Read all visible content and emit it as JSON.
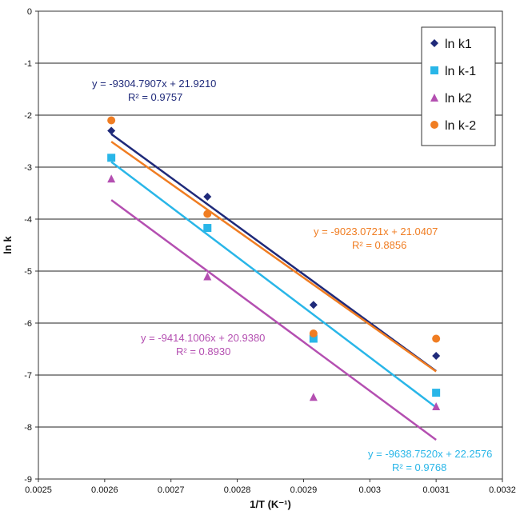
{
  "chart_data": {
    "type": "scatter",
    "xlabel": "1/T (K⁻¹)",
    "ylabel": "ln k",
    "xlim": [
      0.0025,
      0.0032
    ],
    "ylim": [
      -9,
      0
    ],
    "x_ticks": [
      "0.0025",
      "0.0026",
      "0.0027",
      "0.0028",
      "0.0029",
      "0.003",
      "0.0031",
      "0.0032"
    ],
    "y_ticks": [
      "0",
      "-1",
      "-2",
      "-3",
      "-4",
      "-5",
      "-6",
      "-7",
      "-8",
      "-9"
    ],
    "grid": "horizontal",
    "legend_position": "top-right",
    "series": [
      {
        "name": "ln k1",
        "marker": "diamond",
        "color": "#1f2a7a",
        "x": [
          0.00261,
          0.002755,
          0.002915,
          0.0031
        ],
        "y": [
          -2.3,
          -3.57,
          -5.65,
          -6.63
        ],
        "fit": {
          "slope": -9304.7907,
          "intercept": 21.921
        },
        "equation": "y = -9304.7907x + 21.9210",
        "r2": "R² = 0.9757"
      },
      {
        "name": "ln k-1",
        "marker": "square",
        "color": "#29b6e8",
        "x": [
          0.00261,
          0.002755,
          0.002915,
          0.0031
        ],
        "y": [
          -2.82,
          -4.17,
          -6.3,
          -7.34
        ],
        "fit": {
          "slope": -9638.752,
          "intercept": 22.2576
        },
        "equation": "y = -9638.7520x + 22.2576",
        "r2": "R² = 0.9768"
      },
      {
        "name": "ln k2",
        "marker": "triangle",
        "color": "#b44fb1",
        "x": [
          0.00261,
          0.002755,
          0.002915,
          0.0031
        ],
        "y": [
          -3.22,
          -5.1,
          -7.42,
          -7.6
        ],
        "fit": {
          "slope": -9414.1006,
          "intercept": 20.938
        },
        "equation": "y = -9414.1006x + 20.9380",
        "r2": "R² = 0.8930"
      },
      {
        "name": "ln k-2",
        "marker": "circle",
        "color": "#f07d22",
        "x": [
          0.00261,
          0.002755,
          0.002915,
          0.0031
        ],
        "y": [
          -2.1,
          -3.9,
          -6.2,
          -6.3
        ],
        "fit": {
          "slope": -9023.0721,
          "intercept": 21.0407
        },
        "equation": "y = -9023.0721x + 21.0407",
        "r2": "R² = 0.8856"
      }
    ]
  }
}
